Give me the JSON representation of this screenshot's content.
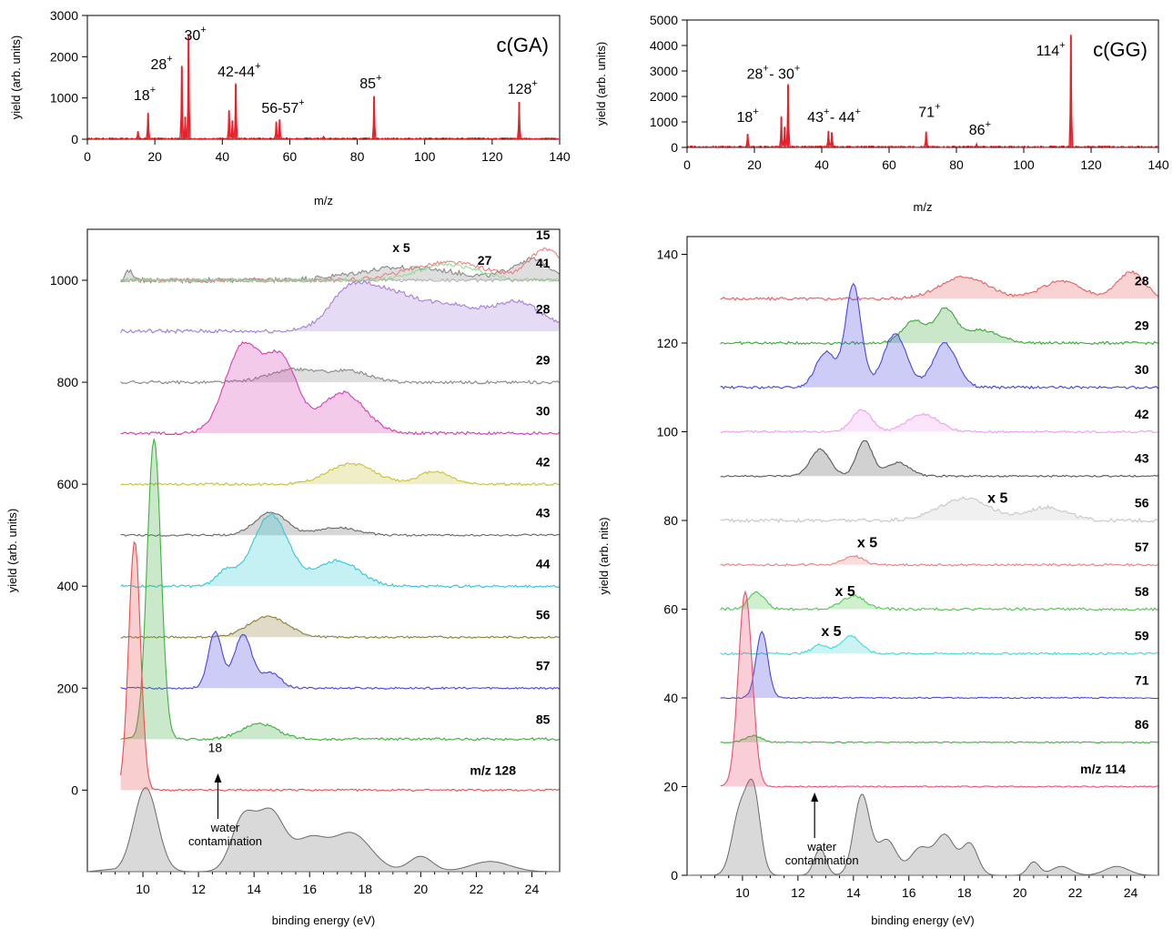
{
  "chart_data": [
    {
      "id": "ms_ga",
      "type": "line",
      "panel": "top-left",
      "xlabel": "m/z",
      "ylabel": "yield (arb. units)",
      "xlim": [
        0,
        140
      ],
      "ylim": [
        0,
        3000
      ],
      "xticks": [
        0,
        20,
        40,
        60,
        80,
        100,
        120,
        140
      ],
      "yticks": [
        0,
        1000,
        2000,
        3000
      ],
      "color": "#e8202a",
      "tag": "c(GA)",
      "peaks": [
        {
          "mz": 15,
          "h": 180
        },
        {
          "mz": 18,
          "h": 620
        },
        {
          "mz": 28,
          "h": 1760
        },
        {
          "mz": 29,
          "h": 540
        },
        {
          "mz": 30,
          "h": 2520
        },
        {
          "mz": 42,
          "h": 680
        },
        {
          "mz": 43,
          "h": 450
        },
        {
          "mz": 44,
          "h": 1330
        },
        {
          "mz": 56,
          "h": 400
        },
        {
          "mz": 57,
          "h": 470
        },
        {
          "mz": 70,
          "h": 60
        },
        {
          "mz": 85,
          "h": 1040
        },
        {
          "mz": 128,
          "h": 900
        }
      ],
      "labels": [
        {
          "text": "18",
          "sup": "+",
          "x": 17,
          "y": 950
        },
        {
          "text": "28",
          "sup": "+",
          "x": 22,
          "y": 1700
        },
        {
          "text": "30",
          "sup": "+",
          "x": 32,
          "y": 2400
        },
        {
          "text": "42-44",
          "sup": "+",
          "x": 45,
          "y": 1520
        },
        {
          "text": "56-57",
          "sup": "+",
          "x": 58,
          "y": 640
        },
        {
          "text": "85",
          "sup": "+",
          "x": 84,
          "y": 1230
        },
        {
          "text": "128",
          "sup": "+",
          "x": 129,
          "y": 1100
        }
      ]
    },
    {
      "id": "ms_gg",
      "type": "line",
      "panel": "top-right",
      "xlabel": "m/z",
      "ylabel": "yield (arb. units)",
      "xlim": [
        0,
        140
      ],
      "ylim": [
        0,
        5000
      ],
      "xticks": [
        0,
        20,
        40,
        60,
        80,
        100,
        120,
        140
      ],
      "yticks": [
        0,
        1000,
        2000,
        3000,
        4000,
        5000
      ],
      "color": "#e8202a",
      "tag": "c(GG)",
      "peaks": [
        {
          "mz": 18,
          "h": 520
        },
        {
          "mz": 28,
          "h": 1180
        },
        {
          "mz": 29,
          "h": 780
        },
        {
          "mz": 30,
          "h": 2440
        },
        {
          "mz": 42,
          "h": 620
        },
        {
          "mz": 43,
          "h": 580
        },
        {
          "mz": 71,
          "h": 590
        },
        {
          "mz": 86,
          "h": 90
        },
        {
          "mz": 114,
          "h": 4380
        }
      ],
      "labels": [
        {
          "text": "18",
          "sup": "+",
          "x": 18,
          "y": 1000
        },
        {
          "text": "28",
          "sup": "+",
          "x": 21,
          "y": 2700
        },
        {
          "text": "- 30",
          "sup": "+",
          "x": 29,
          "y": 2700
        },
        {
          "text": "43",
          "sup": "+",
          "x": 39,
          "y": 1000
        },
        {
          "text": "- 44",
          "sup": "+",
          "x": 47,
          "y": 1000
        },
        {
          "text": "71",
          "sup": "+",
          "x": 72,
          "y": 1200
        },
        {
          "text": "86",
          "sup": "+",
          "x": 87,
          "y": 500
        },
        {
          "text": "114",
          "sup": "+",
          "x": 108,
          "y": 3600
        }
      ]
    },
    {
      "id": "pes_ga",
      "type": "area",
      "panel": "bottom-left",
      "xlabel": "binding energy (eV)",
      "ylabel": "yield (arb. units)",
      "xlim": [
        8,
        25
      ],
      "ylim": [
        -160,
        1100
      ],
      "xticks": [
        10,
        12,
        14,
        16,
        18,
        20,
        22,
        24
      ],
      "yticks": [
        0,
        200,
        400,
        600,
        800,
        1000
      ],
      "series": [
        {
          "label": "x 5",
          "labelx": 19.3,
          "labely": 1055,
          "color": "#8a8a8a",
          "base": 1000,
          "noise": 10,
          "peaks": [
            [
              9.5,
              0.15,
              20
            ],
            [
              19.5,
              2.5,
              25
            ],
            [
              24,
              1,
              40
            ]
          ]
        },
        {
          "label": "15",
          "labelx": 24.4,
          "labely": 1080,
          "color": "#f08080",
          "base": 1000,
          "noise": 8,
          "peaks": [
            [
              21,
              2,
              35
            ],
            [
              24.5,
              0.8,
              60
            ]
          ],
          "nofill": true
        },
        {
          "label": "27",
          "labelx": 22.3,
          "labely": 1030,
          "color": "#90e090",
          "base": 1000,
          "noise": 8,
          "peaks": [
            [
              21,
              1.5,
              30
            ]
          ],
          "nofill": true
        },
        {
          "label": "41",
          "labelx": 24.4,
          "labely": 1025,
          "color": "#b0b0b0",
          "base": 1000,
          "noise": 6,
          "peaks": [],
          "nofill": true
        },
        {
          "label": "28",
          "labelx": 24.4,
          "labely": 935,
          "color": "#a77fd8",
          "base": 900,
          "noise": 8,
          "peaks": [
            [
              17.5,
              1.1,
              80
            ],
            [
              19,
              1.2,
              60
            ],
            [
              21,
              1.5,
              50
            ],
            [
              23.5,
              1.3,
              55
            ]
          ]
        },
        {
          "label": "29",
          "labelx": 24.4,
          "labely": 835,
          "color": "#8a8a8a",
          "base": 800,
          "noise": 6,
          "peaks": [
            [
              15.5,
              1.3,
              25
            ],
            [
              17.5,
              1,
              20
            ]
          ]
        },
        {
          "label": "30",
          "labelx": 24.4,
          "labely": 735,
          "color": "#d63fb4",
          "base": 700,
          "noise": 6,
          "peaks": [
            [
              13.6,
              0.9,
              170
            ],
            [
              15,
              0.8,
              140
            ],
            [
              17.2,
              1.1,
              80
            ]
          ]
        },
        {
          "label": "42",
          "labelx": 24.4,
          "labely": 635,
          "color": "#c8c237",
          "base": 600,
          "noise": 5,
          "peaks": [
            [
              17.5,
              1.2,
              40
            ],
            [
              20.5,
              0.8,
              25
            ]
          ]
        },
        {
          "label": "43",
          "labelx": 24.4,
          "labely": 535,
          "color": "#6a6a6a",
          "base": 500,
          "noise": 4,
          "peaks": [
            [
              14.6,
              0.8,
              45
            ],
            [
              17,
              1,
              15
            ]
          ]
        },
        {
          "label": "44",
          "labelx": 24.4,
          "labely": 435,
          "color": "#30c8d8",
          "base": 400,
          "noise": 5,
          "peaks": [
            [
              14.6,
              0.9,
              140
            ],
            [
              17,
              1.1,
              50
            ],
            [
              13,
              0.5,
              30
            ]
          ]
        },
        {
          "label": "56",
          "labelx": 24.4,
          "labely": 335,
          "color": "#8b7f3a",
          "base": 300,
          "noise": 4,
          "peaks": [
            [
              14.5,
              1,
              40
            ]
          ]
        },
        {
          "label": "57",
          "labelx": 24.4,
          "labely": 235,
          "color": "#4848e0",
          "base": 200,
          "noise": 4,
          "peaks": [
            [
              12.6,
              0.35,
              110
            ],
            [
              13.6,
              0.45,
              105
            ],
            [
              14.6,
              0.5,
              30
            ]
          ]
        },
        {
          "label": "85",
          "labelx": 24.4,
          "labely": 130,
          "color": "#40b040",
          "base": 100,
          "noise": 5,
          "peaks": [
            [
              10.4,
              0.35,
              590
            ],
            [
              14.2,
              0.9,
              30
            ]
          ]
        },
        {
          "label": "m/z 128",
          "labelx": 22.6,
          "labely": 30,
          "color": "#e85050",
          "base": 0,
          "noise": 4,
          "peaks": [
            [
              9.7,
              0.3,
              490
            ]
          ]
        }
      ],
      "gray_trace": {
        "base": -160,
        "peaks": [
          [
            10.1,
            0.6,
            165
          ],
          [
            13.6,
            0.6,
            100
          ],
          [
            14.6,
            0.7,
            115
          ],
          [
            16,
            0.8,
            60
          ],
          [
            17.5,
            1,
            75
          ],
          [
            20,
            0.6,
            30
          ],
          [
            22.5,
            1,
            20
          ]
        ]
      },
      "annotation": {
        "line1": "water",
        "line2": "contamination",
        "x": 12.7,
        "y": -60
      },
      "small_label": {
        "text": "18",
        "x": 12.6,
        "y": 75
      }
    },
    {
      "id": "pes_gg",
      "type": "area",
      "panel": "bottom-right",
      "xlabel": "binding energy (eV)",
      "ylabel": "yield (arb. nits)",
      "xlim": [
        8,
        25
      ],
      "ylim": [
        0,
        144
      ],
      "xticks": [
        10,
        12,
        14,
        16,
        18,
        20,
        22,
        24
      ],
      "yticks": [
        0,
        20,
        40,
        60,
        80,
        100,
        120,
        140
      ],
      "series": [
        {
          "label": "28",
          "labelx": 24.4,
          "labely": 133,
          "color": "#e86060",
          "base": 130,
          "noise": 0.7,
          "peaks": [
            [
              18,
              1.2,
              5
            ],
            [
              21.5,
              1,
              4
            ],
            [
              24,
              0.7,
              6
            ]
          ]
        },
        {
          "label": "29",
          "labelx": 24.4,
          "labely": 123,
          "color": "#40a840",
          "base": 120,
          "noise": 0.6,
          "peaks": [
            [
              16.2,
              0.6,
              5
            ],
            [
              17.3,
              0.5,
              7
            ],
            [
              18.5,
              1,
              3
            ]
          ]
        },
        {
          "label": "30",
          "labelx": 24.4,
          "labely": 113,
          "color": "#4848e0",
          "base": 110,
          "noise": 0.6,
          "peaks": [
            [
              14,
              0.4,
              23
            ],
            [
              13,
              0.5,
              8
            ],
            [
              15.5,
              0.6,
              12
            ],
            [
              17.3,
              0.6,
              10
            ]
          ]
        },
        {
          "label": "42",
          "labelx": 24.4,
          "labely": 103,
          "color": "#f0a0f0",
          "base": 100,
          "noise": 0.5,
          "peaks": [
            [
              14.3,
              0.5,
              5
            ],
            [
              16.5,
              0.8,
              4
            ]
          ]
        },
        {
          "label": "43",
          "labelx": 24.4,
          "labely": 93,
          "color": "#5a5a5a",
          "base": 90,
          "noise": 0.4,
          "peaks": [
            [
              12.8,
              0.5,
              6
            ],
            [
              14.4,
              0.4,
              8
            ],
            [
              15.6,
              0.6,
              3
            ]
          ]
        },
        {
          "label": "56",
          "labelx": 24.4,
          "labely": 83,
          "color": "#c8c8c8",
          "base": 80,
          "noise": 0.8,
          "peaks": [
            [
              18,
              1.3,
              5
            ],
            [
              21,
              1,
              3
            ]
          ]
        },
        {
          "label": "57",
          "labelx": 24.4,
          "labely": 73,
          "color": "#f08080",
          "base": 70,
          "noise": 0.5,
          "peaks": [
            [
              14,
              0.5,
              2
            ]
          ]
        },
        {
          "label": "58",
          "labelx": 24.4,
          "labely": 63,
          "color": "#50c850",
          "base": 60,
          "noise": 0.6,
          "peaks": [
            [
              10.5,
              0.4,
              4
            ],
            [
              14,
              0.6,
              3
            ]
          ]
        },
        {
          "label": "59",
          "labelx": 24.4,
          "labely": 53,
          "color": "#40d8d8",
          "base": 50,
          "noise": 0.5,
          "peaks": [
            [
              13.9,
              0.5,
              4
            ],
            [
              12.8,
              0.4,
              2
            ]
          ]
        },
        {
          "label": "71",
          "labelx": 24.4,
          "labely": 43,
          "color": "#4848e0",
          "base": 40,
          "noise": 0.3,
          "peaks": [
            [
              10.7,
              0.3,
              15
            ]
          ]
        },
        {
          "label": "86",
          "labelx": 24.4,
          "labely": 33,
          "color": "#40b040",
          "base": 30,
          "noise": 0.3,
          "peaks": [
            [
              10.4,
              0.4,
              1.5
            ]
          ]
        },
        {
          "label": "m/z 114",
          "labelx": 23,
          "labely": 23,
          "color": "#e85070",
          "base": 20,
          "noise": 0.3,
          "peaks": [
            [
              10.1,
              0.35,
              44
            ]
          ]
        }
      ],
      "scale_labels": [
        {
          "text": "x 5",
          "x": 19.2,
          "y": 84
        },
        {
          "text": "x 5",
          "x": 14.5,
          "y": 74
        },
        {
          "text": "x 5",
          "x": 13.7,
          "y": 63
        },
        {
          "text": "x 5",
          "x": 13.2,
          "y": 54
        }
      ],
      "gray_trace": {
        "base": 0,
        "peaks": [
          [
            9.9,
            0.4,
            14
          ],
          [
            10.4,
            0.35,
            18
          ],
          [
            12.8,
            0.3,
            6
          ],
          [
            14.3,
            0.4,
            18
          ],
          [
            15.2,
            0.5,
            8
          ],
          [
            16.4,
            0.5,
            6
          ],
          [
            17.3,
            0.5,
            9
          ],
          [
            18.2,
            0.4,
            7
          ],
          [
            20.5,
            0.3,
            3
          ],
          [
            21.5,
            0.5,
            2
          ],
          [
            23.5,
            0.6,
            2
          ]
        ]
      },
      "annotation": {
        "line1": "water",
        "line2": "contamination",
        "x": 12.6,
        "y": 8
      }
    }
  ]
}
